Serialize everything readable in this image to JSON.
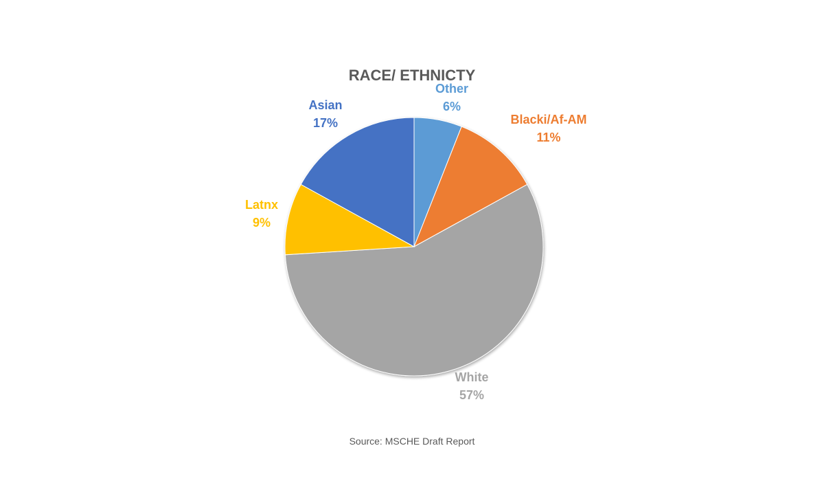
{
  "chart_data": {
    "type": "pie",
    "title": "RACE/ ETHNICTY",
    "start_angle_deg": 0,
    "direction": "clockwise",
    "slices": [
      {
        "label": "Other",
        "percent_label": "6%",
        "value": 6,
        "color": "#5B9BD5"
      },
      {
        "label": "Blacki/Af-AM",
        "percent_label": "11%",
        "value": 11,
        "color": "#ED7D31"
      },
      {
        "label": "White",
        "percent_label": "57%",
        "value": 57,
        "color": "#A5A5A5"
      },
      {
        "label": "Latnx",
        "percent_label": "9%",
        "value": 9,
        "color": "#FFC000"
      },
      {
        "label": "Asian",
        "percent_label": "17%",
        "value": 17,
        "color": "#4472C4"
      }
    ]
  },
  "source": "Source: MSCHE Draft Report"
}
